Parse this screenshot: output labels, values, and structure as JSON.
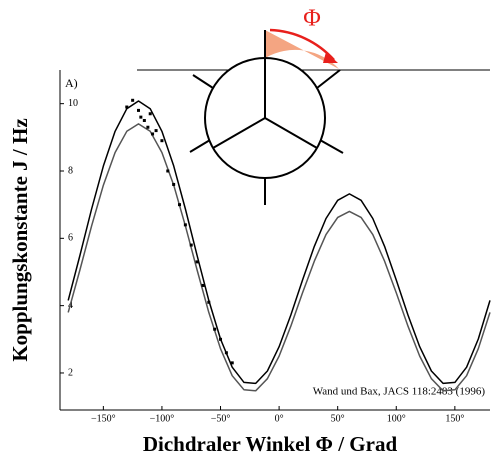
{
  "chart_data": {
    "type": "line",
    "annotations": [
      "A)",
      "Wand und Bax, JACS 118:2483 (1996)",
      "Φ"
    ],
    "xlabel": "Dichdraler Winkel Φ / Grad",
    "ylabel": "Kopplungskonstante J / Hz",
    "x": [
      -180,
      -170,
      -160,
      -150,
      -140,
      -130,
      -120,
      -110,
      -100,
      -90,
      -80,
      -70,
      -60,
      -50,
      -40,
      -30,
      -20,
      -10,
      0,
      10,
      20,
      30,
      40,
      50,
      60,
      70,
      80,
      90,
      100,
      110,
      120,
      130,
      140,
      150,
      160,
      170,
      180
    ],
    "series": [
      {
        "color": "#000000",
        "values": [
          4.155,
          5.49,
          6.87,
          8.15,
          9.18,
          9.85,
          10.08,
          9.85,
          9.18,
          8.15,
          6.87,
          5.49,
          4.155,
          3.01,
          2.17,
          1.72,
          1.69,
          2.06,
          2.78,
          3.72,
          4.76,
          5.76,
          6.59,
          7.13,
          7.32,
          7.13,
          6.59,
          5.76,
          4.76,
          3.72,
          2.78,
          2.06,
          1.69,
          1.72,
          2.17,
          3.01,
          4.155
        ]
      },
      {
        "color": "#555555",
        "values": [
          3.8,
          5.06,
          6.37,
          7.58,
          8.55,
          9.18,
          9.4,
          9.18,
          8.55,
          7.58,
          6.37,
          5.06,
          3.8,
          2.72,
          1.92,
          1.5,
          1.47,
          1.83,
          2.5,
          3.39,
          4.38,
          5.32,
          6.11,
          6.62,
          6.8,
          6.62,
          6.11,
          5.32,
          4.38,
          3.39,
          2.5,
          1.83,
          1.47,
          1.5,
          1.92,
          2.72,
          3.8
        ]
      }
    ],
    "points": {
      "color": "#000000",
      "x": [
        -130,
        -125,
        -120,
        -118,
        -115,
        -112,
        -110,
        -108,
        -105,
        -100,
        -95,
        -90,
        -85,
        -80,
        -75,
        -70,
        -65,
        -60,
        -55,
        -50,
        -45,
        -40
      ],
      "y": [
        9.9,
        10.1,
        9.8,
        9.6,
        9.5,
        9.3,
        9.7,
        9.1,
        9.2,
        8.9,
        8.0,
        7.6,
        7.0,
        6.4,
        5.8,
        5.3,
        4.6,
        4.1,
        3.3,
        3.0,
        2.6,
        2.3
      ]
    },
    "xlim": [
      -187,
      180
    ],
    "ylim": [
      0.9,
      11
    ],
    "xticks": [
      {
        "value": -150,
        "label": "−150°"
      },
      {
        "value": -100,
        "label": "−100°"
      },
      {
        "value": -50,
        "label": "−50°"
      },
      {
        "value": 0,
        "label": "0°"
      },
      {
        "value": 50,
        "label": "50°"
      },
      {
        "value": 100,
        "label": "100°"
      },
      {
        "value": 150,
        "label": "150°"
      }
    ],
    "yticks": [
      2,
      4,
      6,
      8,
      10
    ]
  }
}
